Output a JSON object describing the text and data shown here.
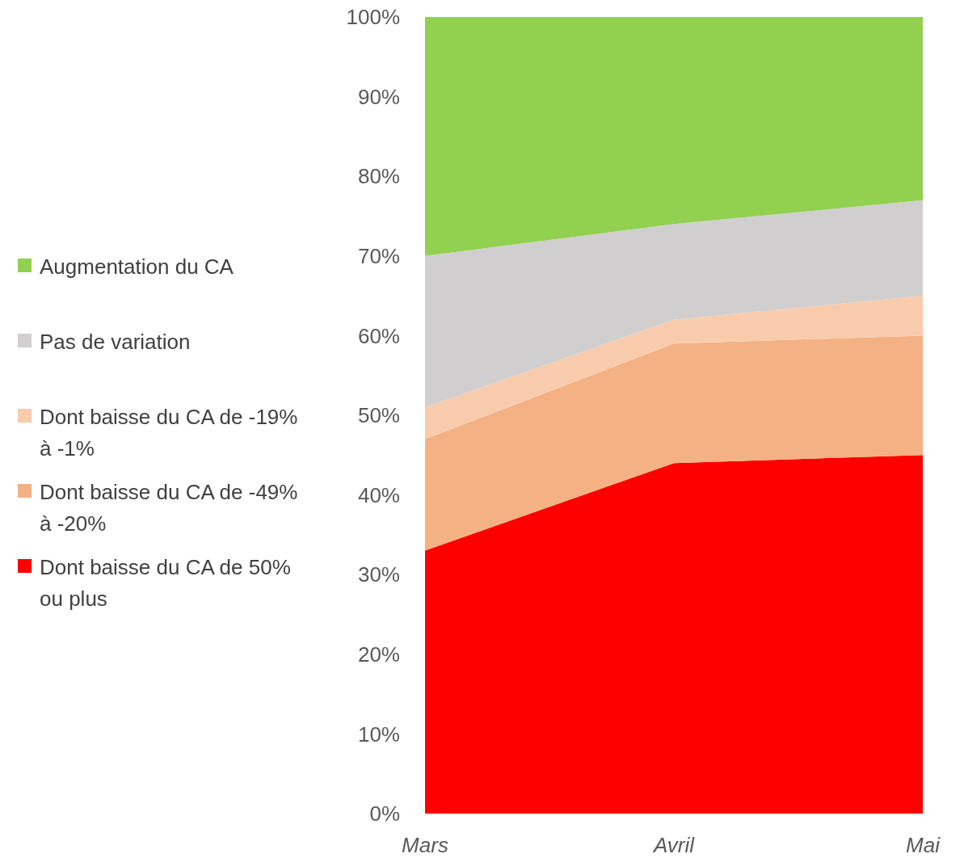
{
  "chart_data": {
    "type": "area",
    "stacked": true,
    "categories": [
      "Mars",
      "Avril",
      "Mai"
    ],
    "series": [
      {
        "name": "Dont baisse du CA de 50% ou plus",
        "color": "#ff0000",
        "values": [
          33,
          44,
          45
        ]
      },
      {
        "name": "Dont baisse du CA de -49% à -20%",
        "color": "#f4b183",
        "values": [
          14,
          15,
          15
        ]
      },
      {
        "name": "Dont baisse du CA de -19% à -1%",
        "color": "#f8cbad",
        "values": [
          4,
          3,
          5
        ]
      },
      {
        "name": "Pas de variation",
        "color": "#d0cece",
        "values": [
          19,
          12,
          12
        ]
      },
      {
        "name": "Augmentation du CA",
        "color": "#92d050",
        "values": [
          30,
          26,
          23
        ]
      }
    ],
    "ylim": [
      0,
      100
    ],
    "yticks": [
      {
        "value": 0,
        "label": "0%"
      },
      {
        "value": 10,
        "label": "10%"
      },
      {
        "value": 20,
        "label": "20%"
      },
      {
        "value": 30,
        "label": "30%"
      },
      {
        "value": 40,
        "label": "40%"
      },
      {
        "value": 50,
        "label": "50%"
      },
      {
        "value": 60,
        "label": "60%"
      },
      {
        "value": 70,
        "label": "70%"
      },
      {
        "value": 80,
        "label": "80%"
      },
      {
        "value": 90,
        "label": "90%"
      },
      {
        "value": 100,
        "label": "100%"
      }
    ],
    "legend": "left",
    "grid": false
  }
}
